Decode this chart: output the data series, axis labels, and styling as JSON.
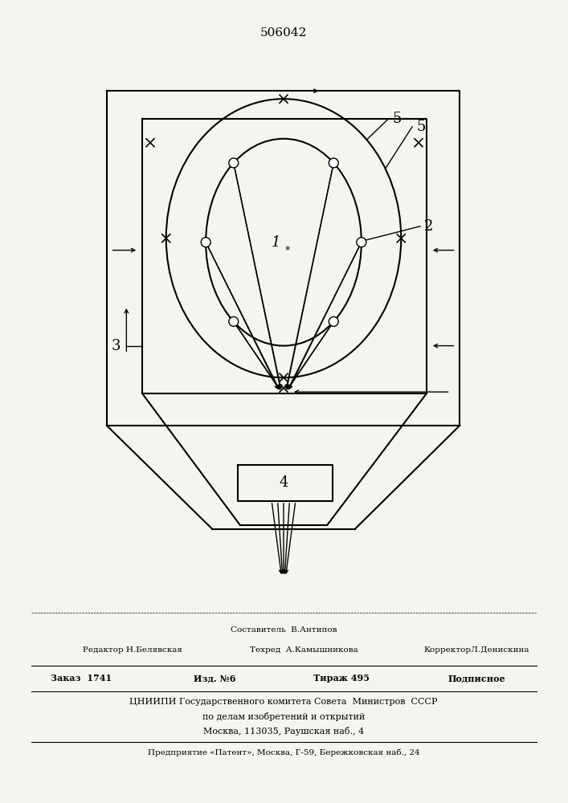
{
  "title": "506042",
  "bg_color": "#f5f5f0",
  "fig_width": 7.07,
  "fig_height": 10.0,
  "footer": {
    "sestavitel": "Составитель  В.Антипов",
    "redaktor": "Редактор Н.Белявская",
    "tehred": "Техред  А.Камышникова",
    "korrektor": "КорректорЛ.Денискина",
    "zakaz": "Заказ",
    "zakaz_num": "1741",
    "izd": "Изд. №6",
    "tirazh": "Тираж 495",
    "podpisnoe": "Подписное",
    "cniip1": "ЦНИИПИ Государственного комитета Совета  Министров  СССР",
    "cniip2": "по делам изобретений и открытий",
    "cniip3": "Москва, 113035, Раушская наб., 4",
    "predpr": "Предприятие «Патент», Москва, Г-59, Бережковская наб., 24"
  }
}
